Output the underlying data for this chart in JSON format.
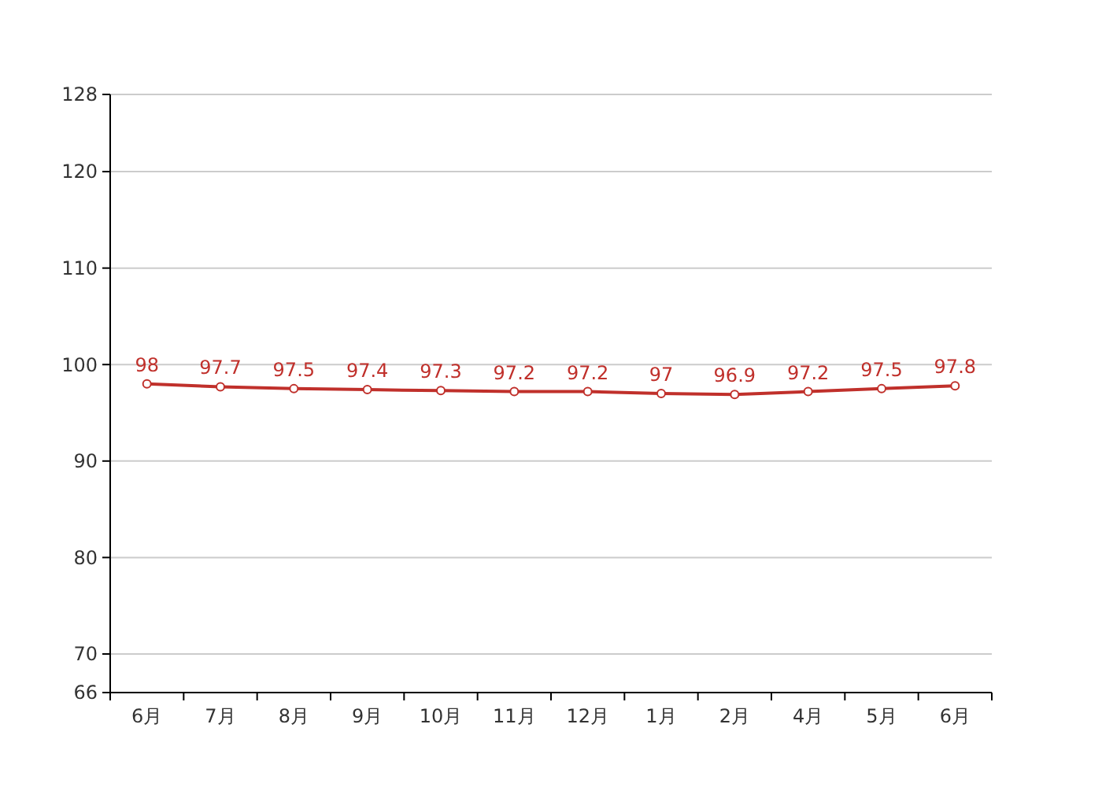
{
  "chart_data": {
    "type": "line",
    "categories": [
      "6月",
      "7月",
      "8月",
      "9月",
      "10月",
      "11月",
      "12月",
      "1月",
      "2月",
      "4月",
      "5月",
      "6月"
    ],
    "series": [
      {
        "color": "#c0302b",
        "values": [
          98,
          97.7,
          97.5,
          97.4,
          97.3,
          97.2,
          97.2,
          97,
          96.9,
          97.2,
          97.5,
          97.8
        ]
      }
    ],
    "ylim": [
      66,
      128
    ],
    "yticks": [
      66,
      70,
      80,
      90,
      100,
      110,
      120,
      128
    ],
    "grid": "y",
    "marker": "circle",
    "data_labels": true
  }
}
